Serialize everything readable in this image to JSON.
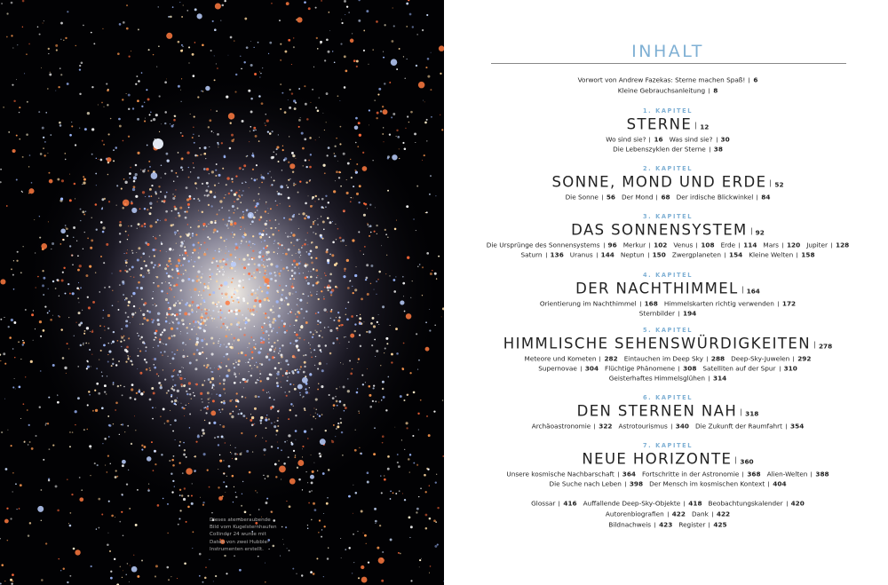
{
  "caption": {
    "lines": [
      "Dieses atemberaubende",
      "Bild vom Kugelsternhaufen",
      "Collinder 24 wurde mit",
      "Daten von zwei Hubble-",
      "Instrumenten erstellt."
    ]
  },
  "header": {
    "title": "INHALT"
  },
  "intro": [
    [
      {
        "text": "Vorwort von Andrew Fazekas: Sterne machen Spaß!",
        "page": "6"
      }
    ],
    [
      {
        "text": "Kleine Gebrauchsanleitung",
        "page": "8"
      }
    ]
  ],
  "chapters": [
    {
      "label": "1. KAPITEL",
      "title": "STERNE",
      "page": "12",
      "lines": [
        [
          {
            "text": "Wo sind sie?",
            "page": "16"
          },
          {
            "text": "Was sind sie?",
            "page": "30"
          }
        ],
        [
          {
            "text": "Die Lebenszyklen der Sterne",
            "page": "38"
          }
        ]
      ]
    },
    {
      "label": "2. KAPITEL",
      "title": "SONNE, MOND UND ERDE",
      "page": "52",
      "lines": [
        [
          {
            "text": "Die Sonne",
            "page": "56"
          },
          {
            "text": "Der Mond",
            "page": "68"
          },
          {
            "text": "Der irdische Blickwinkel",
            "page": "84"
          }
        ]
      ]
    },
    {
      "label": "3. KAPITEL",
      "title": "DAS SONNENSYSTEM",
      "page": "92",
      "lines": [
        [
          {
            "text": "Die Ursprünge des Sonnensystems",
            "page": "96"
          },
          {
            "text": "Merkur",
            "page": "102"
          },
          {
            "text": "Venus",
            "page": "108"
          },
          {
            "text": "Erde",
            "page": "114"
          },
          {
            "text": "Mars",
            "page": "120"
          },
          {
            "text": "Jupiter",
            "page": "128"
          }
        ],
        [
          {
            "text": "Saturn",
            "page": "136"
          },
          {
            "text": "Uranus",
            "page": "144"
          },
          {
            "text": "Neptun",
            "page": "150"
          },
          {
            "text": "Zwergplaneten",
            "page": "154"
          },
          {
            "text": "Kleine Welten",
            "page": "158"
          }
        ]
      ]
    },
    {
      "label": "4. KAPITEL",
      "title": "DER NACHTHIMMEL",
      "page": "164",
      "lines": [
        [
          {
            "text": "Orientierung im Nachthimmel",
            "page": "168"
          },
          {
            "text": "Himmelskarten richtig verwenden",
            "page": "172"
          }
        ],
        [
          {
            "text": "Sternbilder",
            "page": "194"
          }
        ]
      ]
    },
    {
      "label": "5. KAPITEL",
      "title": "HIMMLISCHE SEHENSWÜRDIGKEITEN",
      "page": "278",
      "lines": [
        [
          {
            "text": "Meteore und Kometen",
            "page": "282"
          },
          {
            "text": "Eintauchen im Deep Sky",
            "page": "288"
          },
          {
            "text": "Deep-Sky-Juwelen",
            "page": "292"
          }
        ],
        [
          {
            "text": "Supernovae",
            "page": "304"
          },
          {
            "text": "Flüchtige Phänomene",
            "page": "308"
          },
          {
            "text": "Satelliten auf der Spur",
            "page": "310"
          }
        ],
        [
          {
            "text": "Geisterhaftes Himmelsglühen",
            "page": "314"
          }
        ]
      ]
    },
    {
      "label": "6. KAPITEL",
      "title": "DEN STERNEN NAH",
      "page": "318",
      "lines": [
        [
          {
            "text": "Archäoastronomie",
            "page": "322"
          },
          {
            "text": "Astrotourismus",
            "page": "340"
          },
          {
            "text": "Die Zukunft der Raumfahrt",
            "page": "354"
          }
        ]
      ]
    },
    {
      "label": "7. KAPITEL",
      "title": "NEUE HORIZONTE",
      "page": "360",
      "lines": [
        [
          {
            "text": "Unsere kosmische Nachbarschaft",
            "page": "364"
          },
          {
            "text": "Fortschritte in der Astronomie",
            "page": "368"
          },
          {
            "text": "Alien-Welten",
            "page": "388"
          }
        ],
        [
          {
            "text": "Die Suche nach Leben",
            "page": "398"
          },
          {
            "text": "Der Mensch im kosmischen Kontext",
            "page": "404"
          }
        ]
      ]
    }
  ],
  "appendix": [
    [
      {
        "text": "Glossar",
        "page": "416"
      },
      {
        "text": "Auffallende Deep-Sky-Objekte",
        "page": "418"
      },
      {
        "text": "Beobachtungskalender",
        "page": "420"
      }
    ],
    [
      {
        "text": "Autorenbiografien",
        "page": "422"
      },
      {
        "text": "Dank",
        "page": "422"
      }
    ],
    [
      {
        "text": "Bildnachweis",
        "page": "423"
      },
      {
        "text": "Register",
        "page": "425"
      }
    ]
  ]
}
